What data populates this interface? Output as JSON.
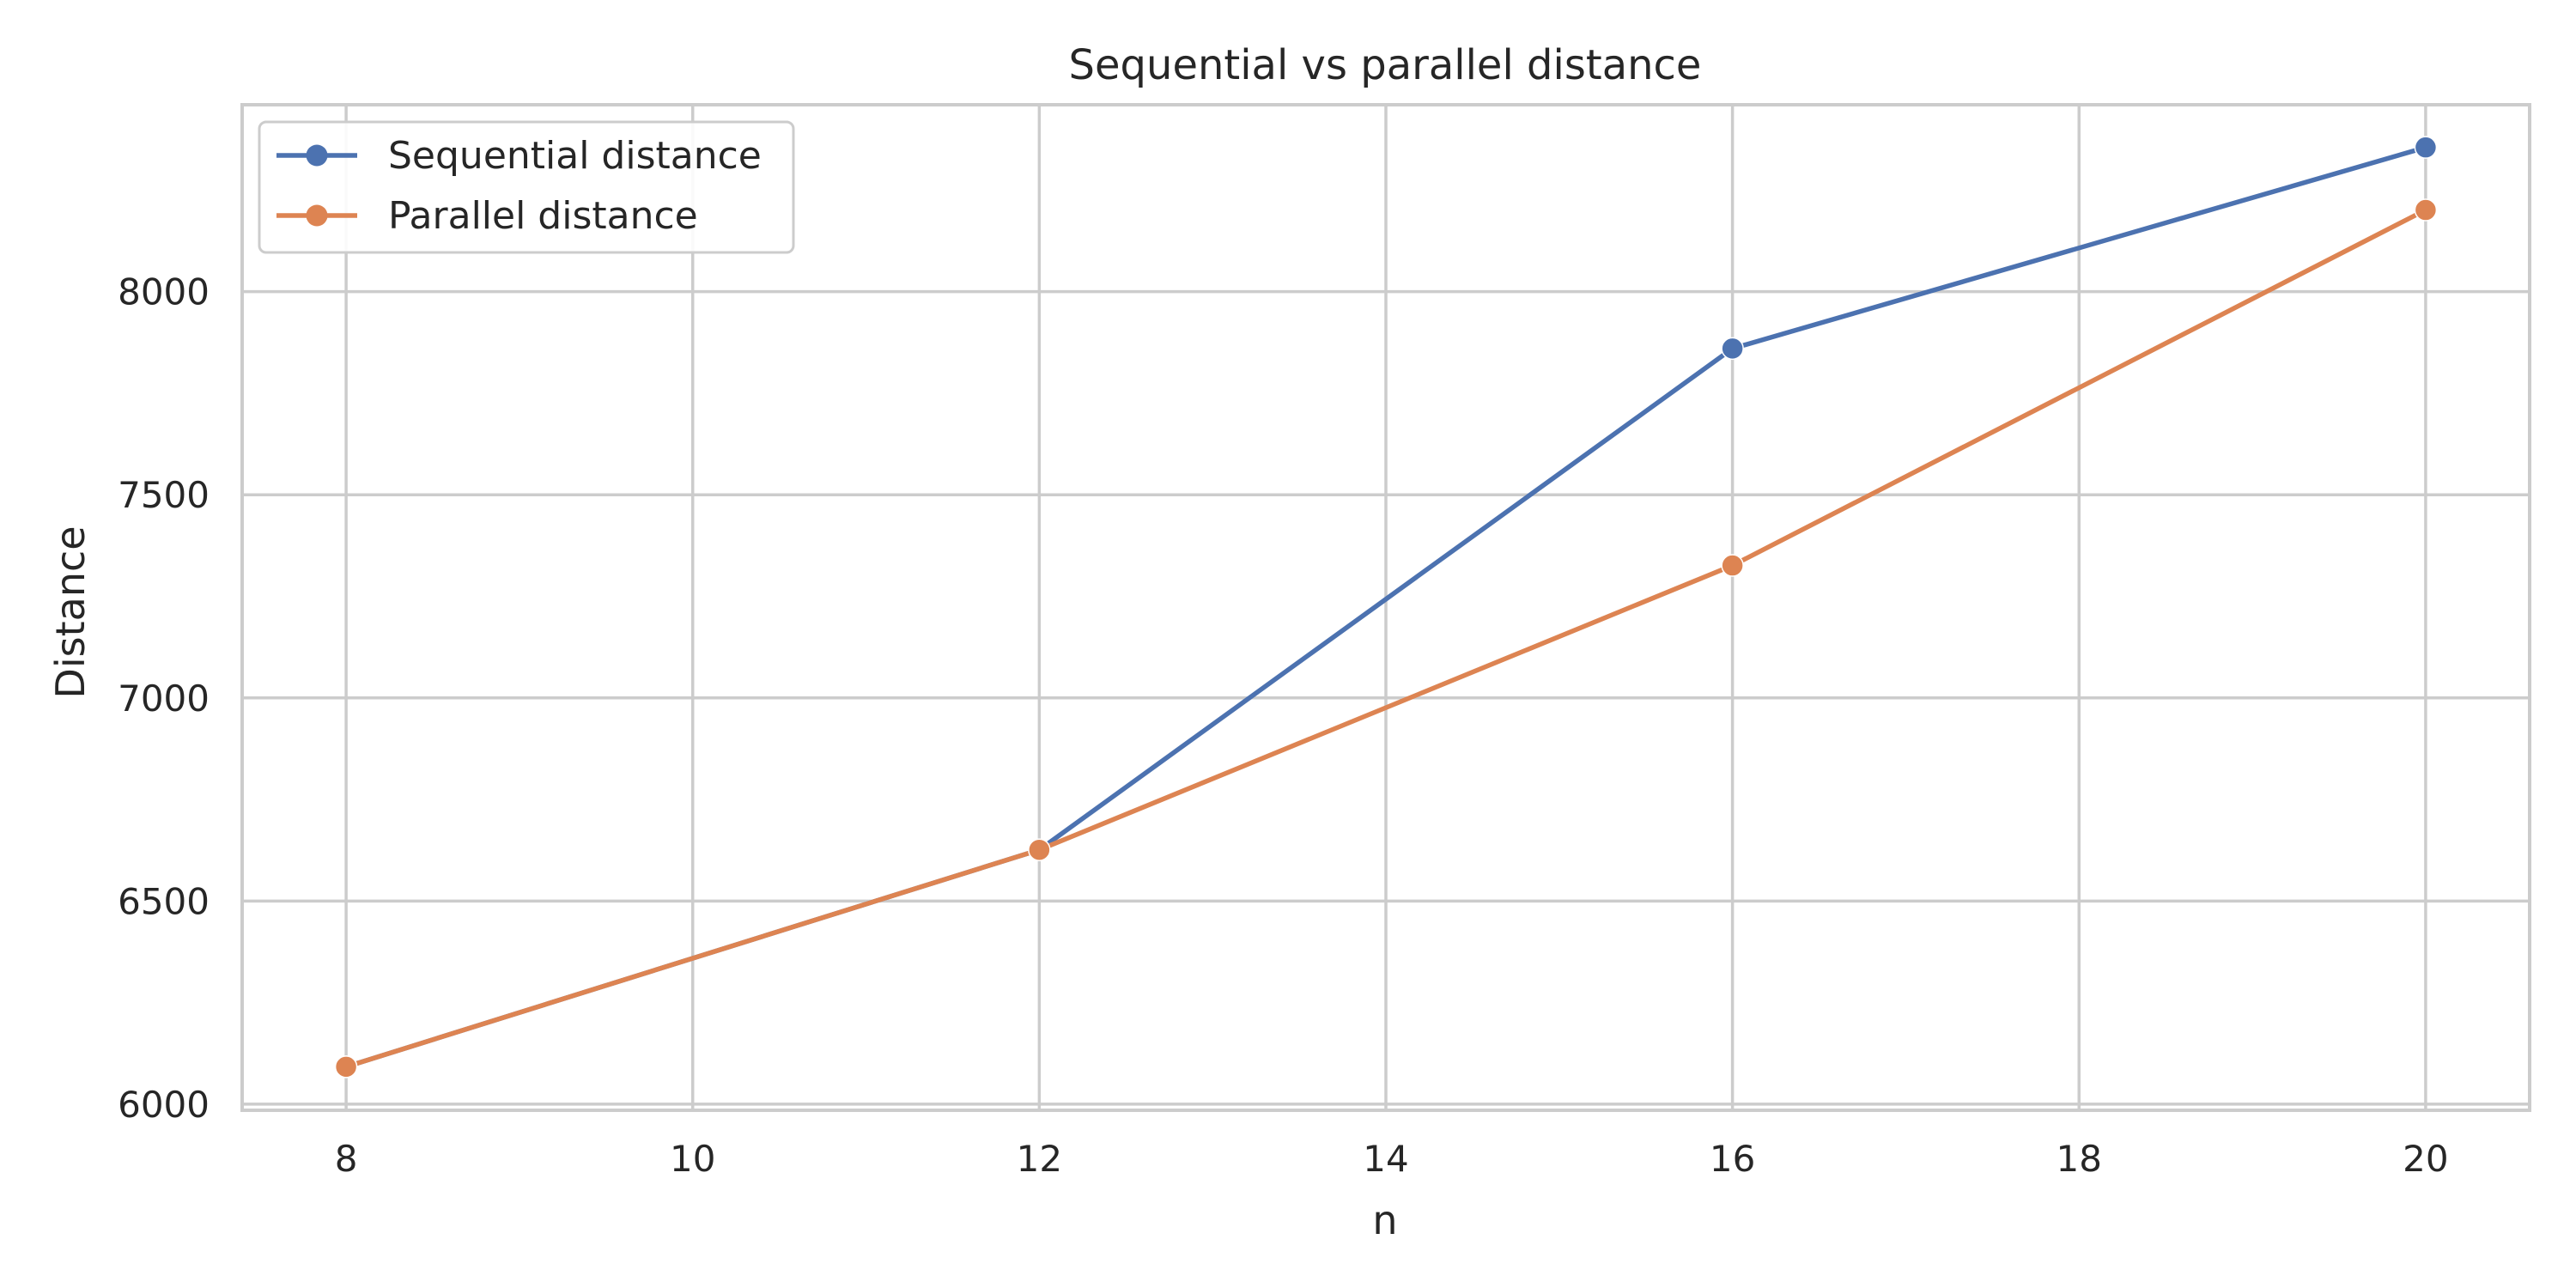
{
  "chart_data": {
    "type": "line",
    "title": "Sequential vs parallel distance",
    "xlabel": "n",
    "ylabel": "Distance",
    "x": [
      8,
      12,
      16,
      20
    ],
    "xlim": [
      7.4,
      20.6
    ],
    "ylim": [
      5985,
      8460
    ],
    "xticks": [
      8,
      10,
      12,
      14,
      16,
      18,
      20
    ],
    "yticks": [
      6000,
      6500,
      7000,
      7500,
      8000
    ],
    "grid": true,
    "legend_position": "top-left",
    "series": [
      {
        "name": "Sequential distance",
        "color": "#4c72b0",
        "marker": "circle",
        "values": [
          6092,
          6626,
          7860,
          8355
        ]
      },
      {
        "name": "Parallel distance",
        "color": "#dd8452",
        "marker": "circle",
        "values": [
          6092,
          6626,
          7326,
          8201
        ]
      }
    ]
  }
}
